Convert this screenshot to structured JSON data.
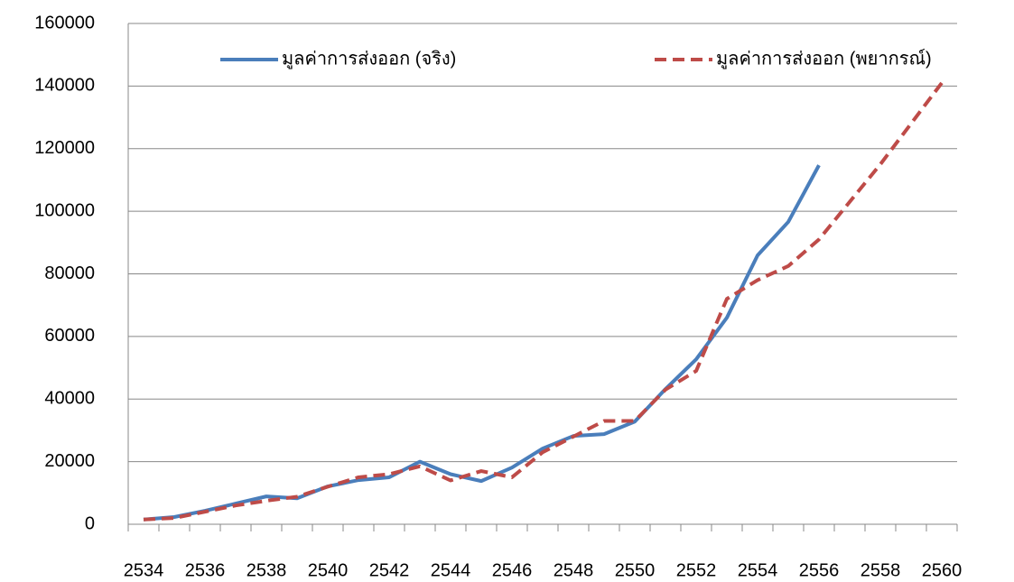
{
  "chart_data": {
    "type": "line",
    "categories": [
      "2534",
      null,
      "2536",
      null,
      "2538",
      null,
      "2540",
      null,
      "2542",
      null,
      "2544",
      null,
      "2546",
      null,
      "2548",
      null,
      "2550",
      null,
      "2552",
      null,
      "2554",
      null,
      "2556",
      null,
      "2558",
      null,
      "2560"
    ],
    "series": [
      {
        "name": "มูลค่าการส่งออก (จริง)",
        "color": "#4a7ebb",
        "style": "solid",
        "values": [
          1500,
          2300,
          4300,
          6600,
          8900,
          8300,
          12100,
          14100,
          15000,
          20000,
          16000,
          13800,
          18100,
          24200,
          28200,
          28800,
          32800,
          43200,
          52700,
          66000,
          85900,
          96600,
          114700,
          null,
          null,
          null,
          null
        ]
      },
      {
        "name": "มูลค่าการส่งออก (พยากรณ์)",
        "color": "#be4b48",
        "style": "dashed",
        "values": [
          1500,
          2000,
          4000,
          6000,
          7500,
          8800,
          12000,
          15000,
          16000,
          18500,
          14000,
          17000,
          15000,
          23000,
          28000,
          33000,
          33000,
          43000,
          49000,
          72000,
          78000,
          82500,
          91000,
          103000,
          115000,
          128000,
          141000
        ]
      }
    ],
    "ylim": [
      0,
      160000
    ],
    "yticks": [
      0,
      20000,
      40000,
      60000,
      80000,
      100000,
      120000,
      140000,
      160000
    ],
    "grid": true
  }
}
